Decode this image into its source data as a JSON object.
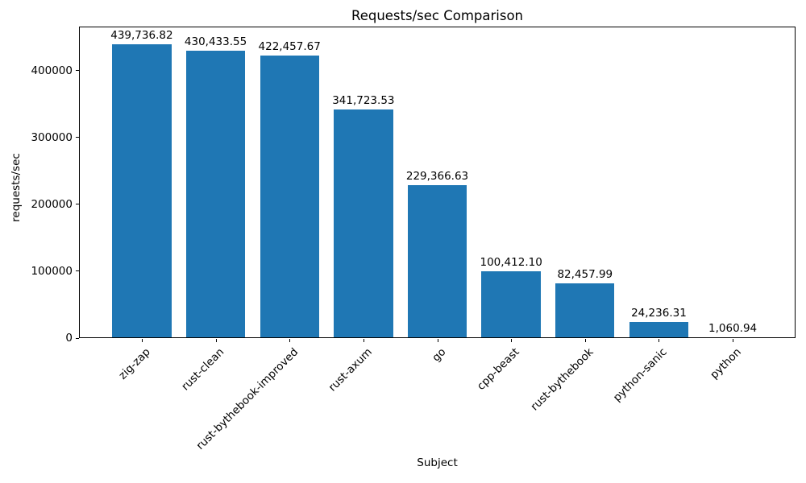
{
  "chart_data": {
    "type": "bar",
    "title": "Requests/sec Comparison",
    "xlabel": "Subject",
    "ylabel": "requests/sec",
    "categories": [
      "zig-zap",
      "rust-clean",
      "rust-bythebook-improved",
      "rust-axum",
      "go",
      "cpp-beast",
      "rust-bythebook",
      "python-sanic",
      "python"
    ],
    "values": [
      439736.82,
      430433.55,
      422457.67,
      341723.53,
      229366.63,
      100412.1,
      82457.99,
      24236.31,
      1060.94
    ],
    "value_labels": [
      "439,736.82",
      "430,433.55",
      "422,457.67",
      "341,723.53",
      "229,366.63",
      "100,412.10",
      "82,457.99",
      "24,236.31",
      "1,060.94"
    ],
    "yticks": [
      0,
      100000,
      200000,
      300000,
      400000
    ],
    "ytick_labels": [
      "0",
      "100000",
      "200000",
      "300000",
      "400000"
    ],
    "ylim": [
      0,
      466000
    ],
    "x_tick_rotation_deg": 45,
    "grid": false,
    "legend": null,
    "bar_color": "#1f77b4",
    "spine_color": "#000000",
    "text_color": "#000000",
    "background_color": "#ffffff"
  }
}
